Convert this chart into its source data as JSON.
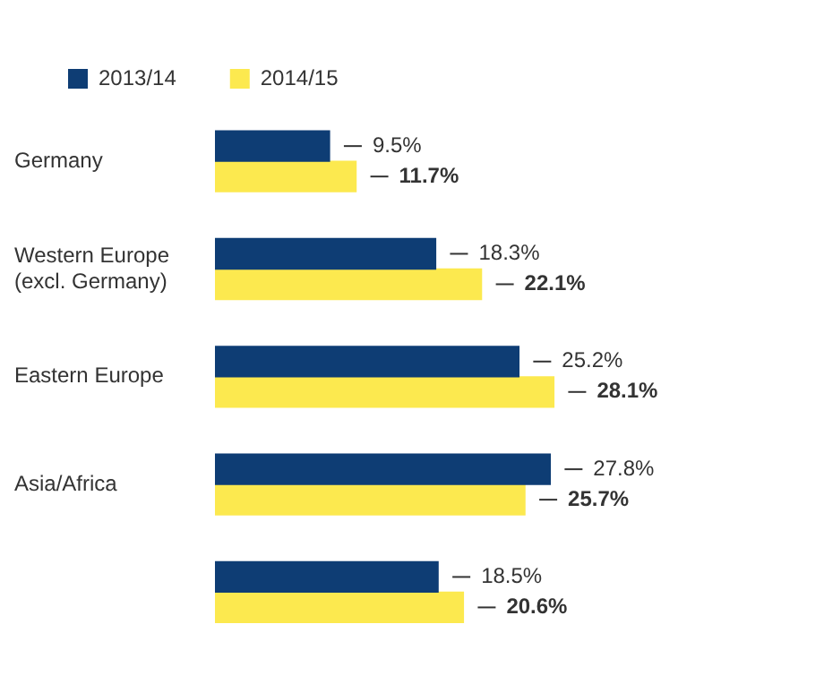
{
  "chart_data": {
    "type": "bar",
    "orientation": "horizontal",
    "categories": [
      "Germany",
      "Western Europe (excl. Germany)",
      "Eastern Europe",
      "Asia/Africa",
      null
    ],
    "series": [
      {
        "name": "2013/14",
        "color": "#0e3d74",
        "values": [
          9.5,
          18.3,
          25.2,
          27.8,
          18.5
        ],
        "value_labels": [
          "9.5%",
          "18.3%",
          "25.2%",
          "27.8%",
          "18.5%"
        ]
      },
      {
        "name": "2014/15",
        "color": "#fce94f",
        "values": [
          11.7,
          22.1,
          28.1,
          25.7,
          20.6
        ],
        "value_labels": [
          "11.7%",
          "22.1%",
          "28.1%",
          "25.7%",
          "20.6%"
        ]
      }
    ],
    "legend": "top left",
    "grid": false
  }
}
